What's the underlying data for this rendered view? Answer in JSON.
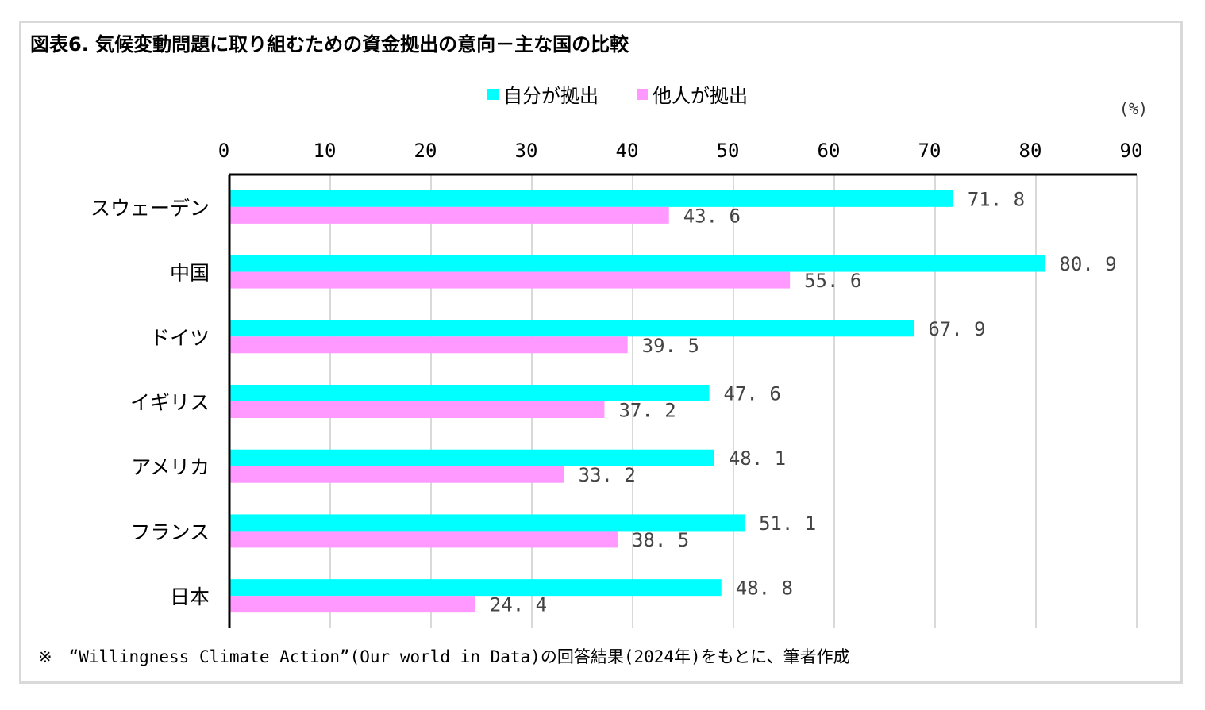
{
  "title": "図表6. 気候変動問題に取り組むための資金拠出の意向－主な国の比較",
  "note": "※　“Willingness Climate Action”(Our world in Data)の回答結果(2024年)をもとに、筆者作成",
  "chart_data": {
    "type": "bar",
    "orientation": "horizontal",
    "unit": "(%)",
    "xlim": [
      0,
      90
    ],
    "ticks": [
      0,
      10,
      20,
      30,
      40,
      50,
      60,
      70,
      80,
      90
    ],
    "grid": true,
    "legend_position": "top",
    "categories": [
      "スウェーデン",
      "中国",
      "ドイツ",
      "イギリス",
      "アメリカ",
      "フランス",
      "日本"
    ],
    "series": [
      {
        "name": "自分が拠出",
        "color": "#00ffff",
        "values": [
          71.8,
          80.9,
          67.9,
          47.6,
          48.1,
          51.1,
          48.8
        ],
        "labels": [
          "71. 8",
          "80. 9",
          "67. 9",
          "47. 6",
          "48. 1",
          "51. 1",
          "48. 8"
        ]
      },
      {
        "name": "他人が拠出",
        "color": "#ff99ff",
        "values": [
          43.6,
          55.6,
          39.5,
          37.2,
          33.2,
          38.5,
          24.4
        ],
        "labels": [
          "43. 6",
          "55. 6",
          "39. 5",
          "37. 2",
          "33. 2",
          "38. 5",
          "24. 4"
        ]
      }
    ]
  }
}
